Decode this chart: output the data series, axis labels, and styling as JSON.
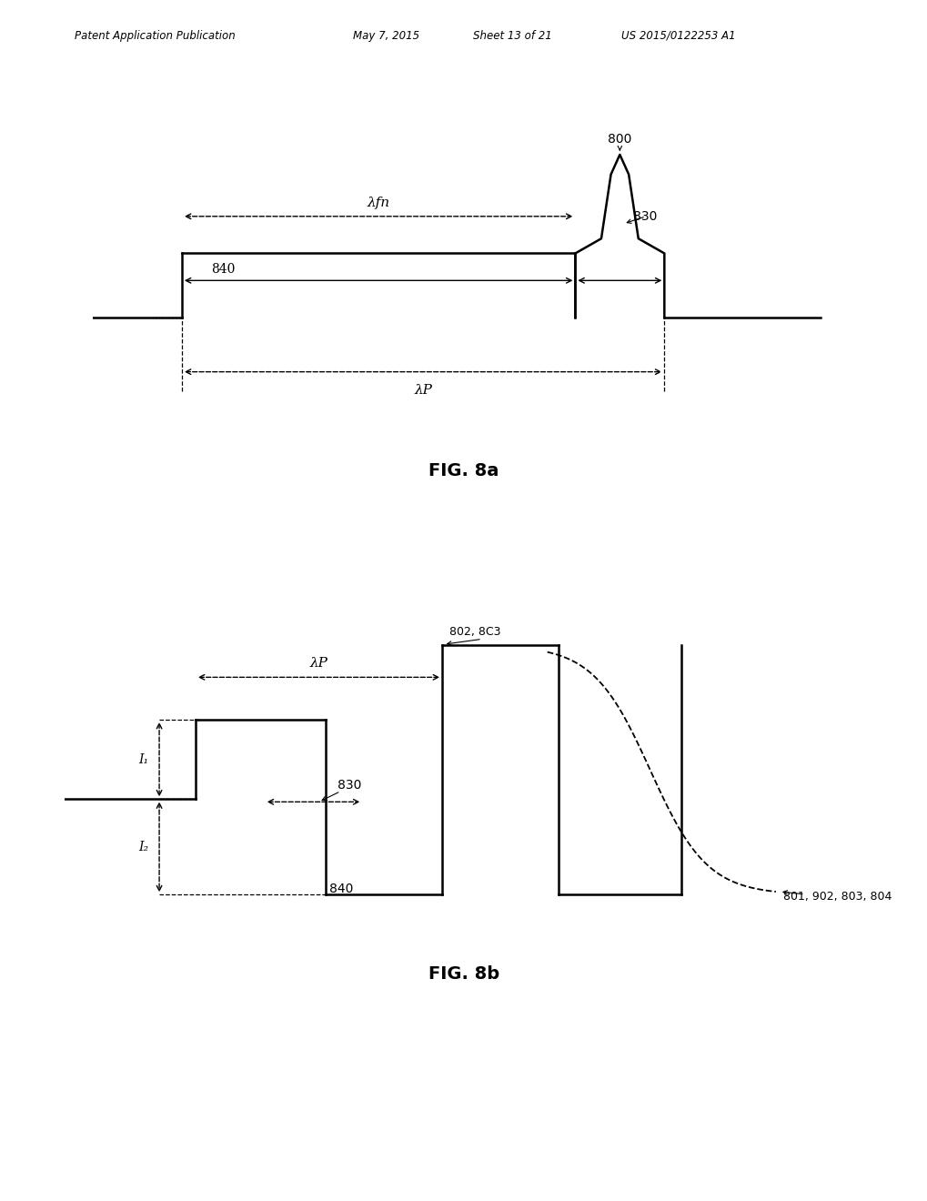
{
  "bg_color": "#ffffff",
  "header_text": "Patent Application Publication",
  "header_date": "May 7, 2015",
  "header_sheet": "Sheet 13 of 21",
  "header_patent": "US 2015/0122253 A1",
  "fig8a_label": "FIG. 8a",
  "fig8b_label": "FIG. 8b",
  "label_800": "800",
  "label_830_8a": "830",
  "label_840_8a": "840",
  "label_lambda_fn": "λfn",
  "label_lambda_P_8a": "λP",
  "label_830_8b": "830",
  "label_840_8b": "840",
  "label_lambda_P_8b": "λP",
  "label_802_803": "802, 8C3",
  "label_801_etc": "801, 902, 803, 804",
  "label_I1": "I₁",
  "label_I2": "I₂"
}
